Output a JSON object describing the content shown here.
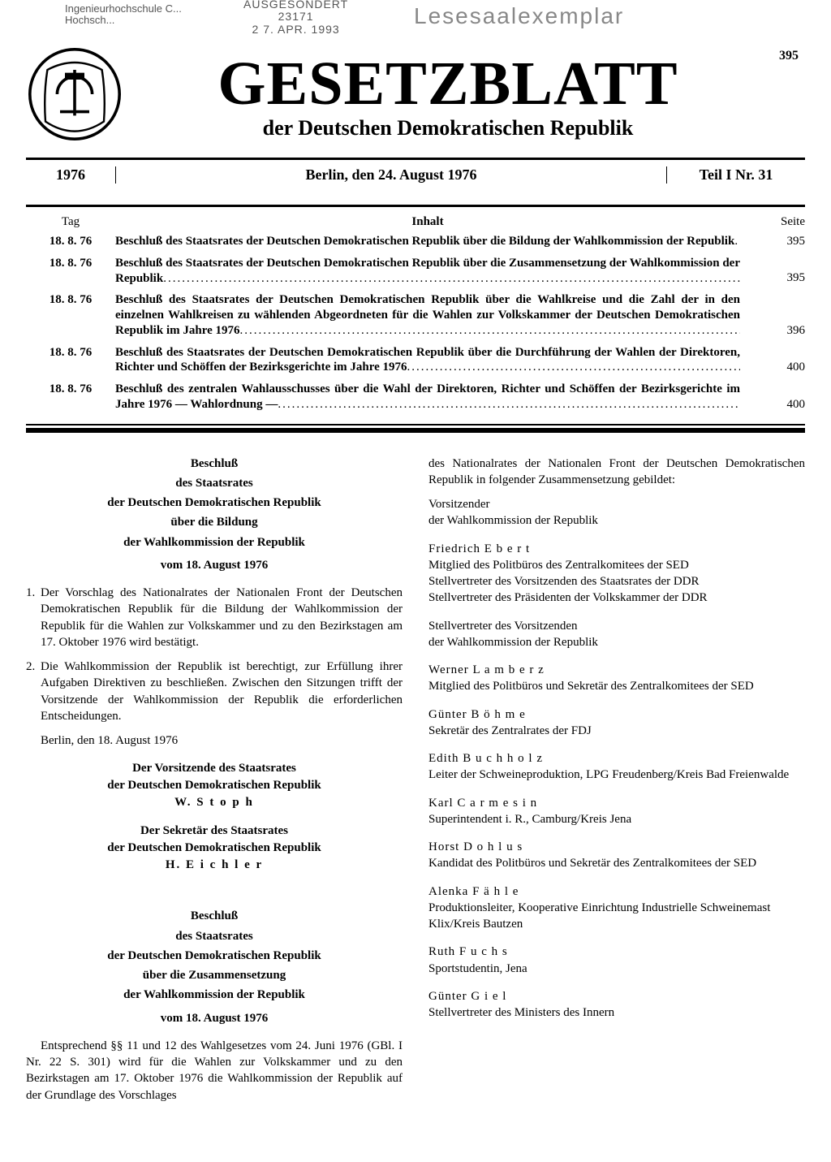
{
  "stamps": {
    "left_line1": "Ingenieurhochschule C...",
    "left_line2": "Hochsch...",
    "mid_top": "AUSGESONDERT",
    "mid_num": "23171",
    "mid_date": "2 7. APR. 1993",
    "right": "Lesesaalexemplar"
  },
  "page_number_top": "395",
  "masthead": {
    "title": "GESETZBLATT",
    "subtitle": "der Deutschen Demokratischen Republik"
  },
  "issue": {
    "year": "1976",
    "dateline": "Berlin, den 24. August 1976",
    "part": "Teil I Nr. 31"
  },
  "toc": {
    "head_date": "Tag",
    "head_title": "Inhalt",
    "head_page": "Seite",
    "rows": [
      {
        "date": "18. 8. 76",
        "title": "Beschluß des Staatsrates der Deutschen Demokratischen Republik über die Bildung der Wahlkommission der Republik",
        "page": "395"
      },
      {
        "date": "18. 8. 76",
        "title": "Beschluß des Staatsrates der Deutschen Demokratischen Republik über die Zusammensetzung der Wahlkommission der Republik",
        "page": "395"
      },
      {
        "date": "18. 8. 76",
        "title": "Beschluß des Staatsrates der Deutschen Demokratischen Republik über die Wahlkreise und die Zahl der in den einzelnen Wahlkreisen zu wählenden Abgeordneten für die Wahlen zur Volkskammer der Deutschen Demokratischen Republik im Jahre 1976",
        "page": "396"
      },
      {
        "date": "18. 8. 76",
        "title": "Beschluß des Staatsrates der Deutschen Demokratischen Republik über die Durchführung der Wahlen der Direktoren, Richter und Schöffen der Bezirksgerichte im Jahre 1976",
        "page": "400"
      },
      {
        "date": "18. 8. 76",
        "title": "Beschluß des zentralen Wahlausschusses über die Wahl der Direktoren, Richter und Schöffen der Bezirksgerichte im Jahre 1976 — Wahlordnung —",
        "page": "400"
      }
    ]
  },
  "col_left": {
    "res1": {
      "h1": "Beschluß",
      "h2": "des Staatsrates",
      "h3": "der Deutschen Demokratischen Republik",
      "h4": "über die Bildung",
      "h5": "der Wahlkommission der Republik",
      "date": "vom 18. August 1976",
      "p1": "Der Vorschlag des Nationalrates der Nationalen Front der Deutschen Demokratischen Republik für die Bildung der Wahlkommission der Republik für die Wahlen zur Volkskammer und zu den Bezirkstagen am 17. Oktober 1976 wird bestätigt.",
      "p2": "Die Wahlkommission der Republik ist berechtigt, zur Erfüllung ihrer Aufgaben Direktiven zu beschließen. Zwischen den Sitzungen trifft der Vorsitzende der Wahlkommission der Republik die erforderlichen Entscheidungen.",
      "place_date": "Berlin, den 18. August 1976",
      "sig1_t1": "Der Vorsitzende des Staatsrates",
      "sig1_t2": "der Deutschen Demokratischen Republik",
      "sig1_name": "W. S t o p h",
      "sig2_t1": "Der Sekretär des Staatsrates",
      "sig2_t2": "der Deutschen Demokratischen Republik",
      "sig2_name": "H. E i c h l e r"
    },
    "res2": {
      "h1": "Beschluß",
      "h2": "des Staatsrates",
      "h3": "der Deutschen Demokratischen Republik",
      "h4": "über die Zusammensetzung",
      "h5": "der Wahlkommission der Republik",
      "date": "vom 18. August 1976",
      "p1": "Entsprechend §§ 11 und 12 des Wahlgesetzes vom 24. Juni 1976 (GBl. I Nr. 22 S. 301) wird für die Wahlen zur Volkskammer und zu den Bezirkstagen am 17. Oktober 1976 die Wahlkommission der Republik auf der Grundlage des Vorschlages"
    }
  },
  "col_right": {
    "intro": "des Nationalrates der Nationalen Front der Deutschen Demokratischen Republik in folgender Zusammensetzung gebildet:",
    "chair_label1": "Vorsitzender",
    "chair_label2": "der Wahlkommission der Republik",
    "vice_label1": "Stellvertreter des Vorsitzenden",
    "vice_label2": "der Wahlkommission der Republik",
    "members": [
      {
        "name": "Friedrich E b e r t",
        "role": "Mitglied des Politbüros des Zentralkomitees der SED\nStellvertreter des Vorsitzenden des Staatsrates der DDR\nStellvertreter des Präsidenten der Volkskammer der DDR"
      },
      {
        "name": "Werner L a m b e r z",
        "role": "Mitglied des Politbüros und Sekretär des Zentralkomitees der SED"
      },
      {
        "name": "Günter B ö h m e",
        "role": "Sekretär des Zentralrates der FDJ"
      },
      {
        "name": "Edith B u c h h o l z",
        "role": "Leiter der Schweineproduktion, LPG Freudenberg/Kreis Bad Freienwalde"
      },
      {
        "name": "Karl C a r m e s i n",
        "role": "Superintendent i. R., Camburg/Kreis Jena"
      },
      {
        "name": "Horst D o h l u s",
        "role": "Kandidat des Politbüros und Sekretär des Zentralkomitees der SED"
      },
      {
        "name": "Alenka F ä h l e",
        "role": "Produktionsleiter, Kooperative Einrichtung Industrielle Schweinemast Klix/Kreis Bautzen"
      },
      {
        "name": "Ruth F u c h s",
        "role": "Sportstudentin, Jena"
      },
      {
        "name": "Günter G i e l",
        "role": "Stellvertreter des Ministers des Innern"
      }
    ]
  }
}
